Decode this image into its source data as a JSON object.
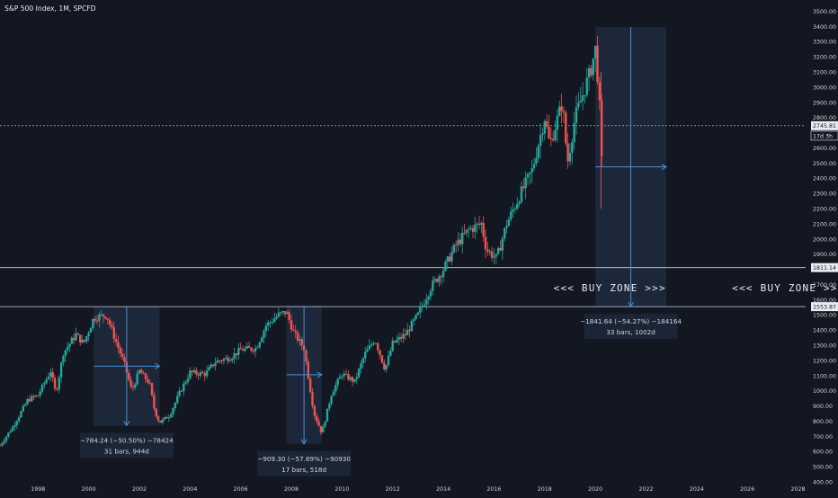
{
  "header": {
    "title": "S&P 500 Index, 1M, SPCFD"
  },
  "colors": {
    "background": "#131722",
    "up_candle": "#26a69a",
    "down_candle": "#ef5350",
    "axis_text": "#d1d4dc",
    "measure_box": "#1e2a3d",
    "measure_line": "#4a90d9",
    "horizontal_line": "#cfd6e6"
  },
  "chart_data": {
    "type": "candlestick",
    "title": "S&P 500 Index, 1M, SPCFD",
    "xlim": [
      1996.5,
      2028.3
    ],
    "ylim": [
      400,
      3550
    ],
    "grid": false,
    "x_ticks": [
      1998,
      2000,
      2002,
      2004,
      2006,
      2008,
      2010,
      2012,
      2014,
      2016,
      2018,
      2020,
      2022,
      2024,
      2026,
      2028
    ],
    "y_ticks": [
      400,
      500,
      600,
      700,
      800,
      900,
      1000,
      1100,
      1200,
      1300,
      1400,
      1500,
      1600,
      1700,
      1800,
      1900,
      2000,
      2100,
      2200,
      2300,
      2400,
      2500,
      2600,
      2700,
      2800,
      2900,
      3000,
      3100,
      3200,
      3300,
      3400,
      3500
    ],
    "price_path": [
      [
        1996.5,
        640
      ],
      [
        1997.0,
        760
      ],
      [
        1997.6,
        940
      ],
      [
        1998.0,
        970
      ],
      [
        1998.5,
        1130
      ],
      [
        1998.7,
        980
      ],
      [
        1999.0,
        1250
      ],
      [
        1999.5,
        1370
      ],
      [
        1999.8,
        1310
      ],
      [
        2000.2,
        1480
      ],
      [
        2000.7,
        1500
      ],
      [
        2001.0,
        1360
      ],
      [
        2001.4,
        1180
      ],
      [
        2001.7,
        1000
      ],
      [
        2002.0,
        1130
      ],
      [
        2002.4,
        1050
      ],
      [
        2002.6,
        870
      ],
      [
        2002.8,
        790
      ],
      [
        2003.2,
        840
      ],
      [
        2003.6,
        990
      ],
      [
        2004.0,
        1120
      ],
      [
        2004.6,
        1110
      ],
      [
        2005.0,
        1190
      ],
      [
        2005.6,
        1220
      ],
      [
        2006.0,
        1270
      ],
      [
        2006.6,
        1280
      ],
      [
        2007.0,
        1430
      ],
      [
        2007.5,
        1500
      ],
      [
        2007.8,
        1520
      ],
      [
        2008.1,
        1380
      ],
      [
        2008.5,
        1280
      ],
      [
        2008.8,
        950
      ],
      [
        2008.9,
        850
      ],
      [
        2009.2,
        720
      ],
      [
        2009.6,
        990
      ],
      [
        2010.0,
        1110
      ],
      [
        2010.5,
        1060
      ],
      [
        2010.9,
        1240
      ],
      [
        2011.3,
        1340
      ],
      [
        2011.7,
        1140
      ],
      [
        2012.0,
        1310
      ],
      [
        2012.5,
        1370
      ],
      [
        2013.0,
        1500
      ],
      [
        2013.5,
        1680
      ],
      [
        2014.0,
        1800
      ],
      [
        2014.5,
        1960
      ],
      [
        2015.0,
        2060
      ],
      [
        2015.5,
        2100
      ],
      [
        2015.7,
        1930
      ],
      [
        2016.1,
        1870
      ],
      [
        2016.5,
        2100
      ],
      [
        2017.0,
        2280
      ],
      [
        2017.5,
        2450
      ],
      [
        2018.0,
        2800
      ],
      [
        2018.2,
        2620
      ],
      [
        2018.7,
        2900
      ],
      [
        2018.9,
        2500
      ],
      [
        2019.2,
        2800
      ],
      [
        2019.5,
        2950
      ],
      [
        2019.8,
        3100
      ],
      [
        2020.0,
        3250
      ],
      [
        2020.15,
        2950
      ],
      [
        2020.22,
        2590
      ],
      [
        2020.26,
        2480
      ]
    ],
    "horizontal_lines": [
      2745.81,
      1811.14,
      1553.87
    ],
    "price_labels": [
      {
        "text": "2745.81",
        "value": 2745.81
      },
      {
        "text": "17d 3h",
        "value": 2680
      },
      {
        "text": "1811.14",
        "value": 1811.14
      },
      {
        "text": "1553.87",
        "value": 1553.87
      }
    ],
    "measurements": [
      {
        "name": "measure-2000-2002",
        "x_start": 2000.2,
        "x_end": 2002.8,
        "y_top": 1553.87,
        "y_bottom": 770,
        "line1": "−784.24 (−50.50%) −78424",
        "line2": "31 bars, 944d"
      },
      {
        "name": "measure-2007-2009",
        "x_start": 2007.8,
        "x_end": 2009.2,
        "y_top": 1560,
        "y_bottom": 650,
        "line1": "−909.30 (−57.69%) −90930",
        "line2": "17 bars, 518d"
      },
      {
        "name": "measure-2020-2022",
        "x_start": 2020.0,
        "x_end": 2022.8,
        "y_top": 3395,
        "y_bottom": 1553.87,
        "line1": "−1841.64 (−54.27%) −184164",
        "line2": "33 bars, 1002d"
      }
    ],
    "annotations": [
      {
        "text": "<<< BUY ZONE >>>",
        "x": 2018.35,
        "value": 1680
      },
      {
        "text": "<<< BUY ZONE >>>",
        "x": 2025.4,
        "value": 1680
      }
    ]
  }
}
